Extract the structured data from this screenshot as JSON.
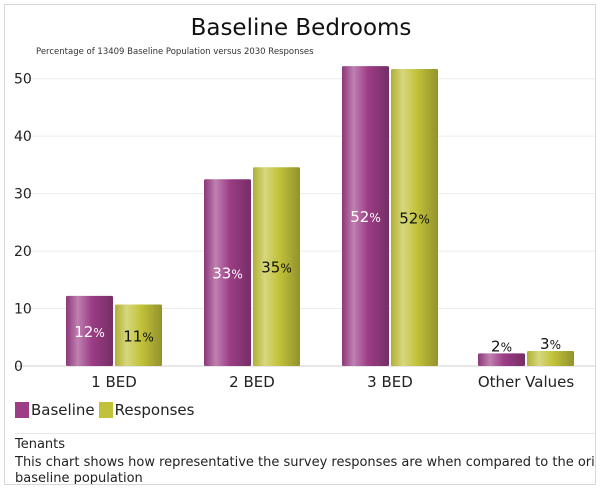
{
  "chart_data": {
    "type": "bar",
    "title": "Baseline Bedrooms",
    "subtitle": "Percentage of 13409 Baseline Population versus 2030 Responses",
    "categories": [
      "1 BED",
      "2 BED",
      "3 BED",
      "Other Values"
    ],
    "series": [
      {
        "name": "Baseline",
        "values": [
          12.2,
          32.5,
          52.2,
          2.2
        ],
        "labels": [
          "12%",
          "33%",
          "52%",
          "2%"
        ],
        "color": "#9c3d86",
        "label_color": "#ffffff"
      },
      {
        "name": "Responses",
        "values": [
          10.7,
          34.6,
          51.7,
          2.6
        ],
        "labels": [
          "11%",
          "35%",
          "52%",
          "3%"
        ],
        "color": "#c2c23a",
        "label_color": "#111111"
      }
    ],
    "ylim": [
      0,
      55
    ],
    "yticks": [
      0,
      10,
      20,
      30,
      40,
      50
    ],
    "grid": true,
    "legend_position": "bottom-left"
  },
  "legend": {
    "items": [
      {
        "label": "Baseline",
        "color": "#9c3d86"
      },
      {
        "label": "Responses",
        "color": "#c2c23a"
      }
    ]
  },
  "footer": {
    "heading": "Tenants",
    "text": "This chart shows how representative the survey responses are when compared to the original baseline population"
  }
}
